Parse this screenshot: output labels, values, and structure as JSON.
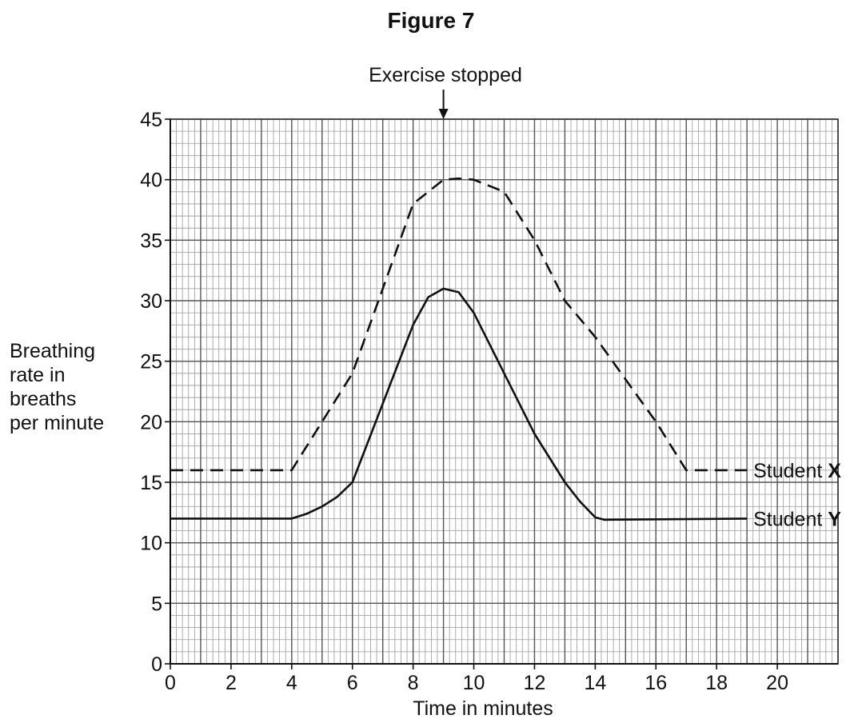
{
  "chart_data": {
    "type": "line",
    "title": "Figure 7",
    "xlabel": "Time in minutes",
    "ylabel": [
      "Breathing",
      "rate in",
      "breaths",
      "per minute"
    ],
    "xlim": [
      0,
      22
    ],
    "ylim": [
      0,
      45
    ],
    "x_ticks": [
      0,
      2,
      4,
      6,
      8,
      10,
      12,
      14,
      16,
      18,
      20
    ],
    "y_ticks": [
      0,
      5,
      10,
      15,
      20,
      25,
      30,
      35,
      40,
      45
    ],
    "grid": true,
    "annotations": [
      {
        "text": "Exercise stopped",
        "x": 9,
        "arrow": "down"
      }
    ],
    "series": [
      {
        "name": "Student X",
        "label_prefix": "Student ",
        "label_bold": "X",
        "style": "dashed",
        "points": [
          [
            0,
            16
          ],
          [
            4,
            16
          ],
          [
            5,
            20
          ],
          [
            6,
            24
          ],
          [
            7,
            31
          ],
          [
            8,
            38
          ],
          [
            9,
            40
          ],
          [
            9.5,
            40.1
          ],
          [
            10,
            40
          ],
          [
            11,
            39
          ],
          [
            12,
            35
          ],
          [
            13,
            30
          ],
          [
            14,
            27
          ],
          [
            15,
            23.5
          ],
          [
            16,
            20
          ],
          [
            17,
            16
          ],
          [
            19,
            16
          ]
        ]
      },
      {
        "name": "Student Y",
        "label_prefix": "Student ",
        "label_bold": "Y",
        "style": "solid",
        "points": [
          [
            0,
            12
          ],
          [
            4,
            12
          ],
          [
            4.5,
            12.4
          ],
          [
            5,
            13
          ],
          [
            5.5,
            13.8
          ],
          [
            6,
            15
          ],
          [
            7,
            21.5
          ],
          [
            8,
            28
          ],
          [
            8.5,
            30.3
          ],
          [
            9,
            31
          ],
          [
            9.5,
            30.7
          ],
          [
            10,
            29
          ],
          [
            11,
            24
          ],
          [
            12,
            19
          ],
          [
            13,
            15
          ],
          [
            13.5,
            13.4
          ],
          [
            14,
            12.1
          ],
          [
            14.3,
            11.9
          ],
          [
            19,
            12
          ]
        ]
      }
    ]
  }
}
